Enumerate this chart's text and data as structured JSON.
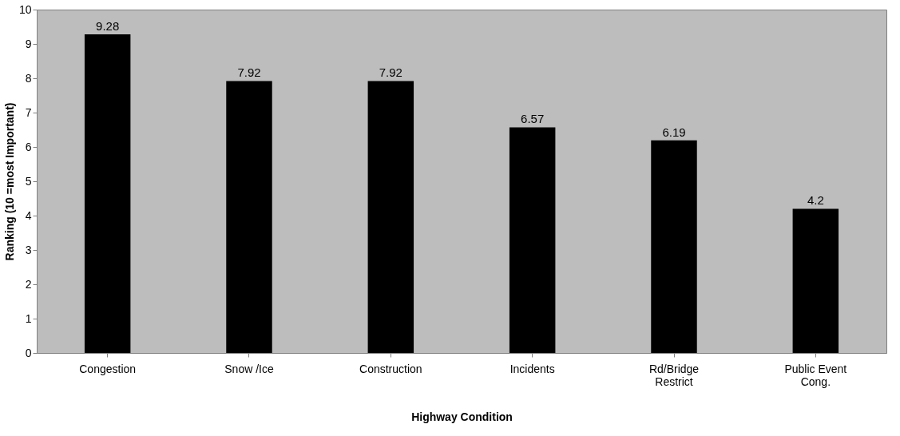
{
  "chart_data": {
    "type": "bar",
    "xlabel": "Highway Condition",
    "ylabel": "Ranking (10 =most Important)",
    "categories": [
      "Congestion",
      "Snow /Ice",
      "Construction",
      "Incidents",
      "Rd/Bridge Restrict",
      "Public Event Cong."
    ],
    "values": [
      9.28,
      7.92,
      7.92,
      6.57,
      6.19,
      4.2
    ],
    "color": "#000000",
    "ylim": [
      0,
      10
    ],
    "yticks": [
      0,
      1,
      2,
      3,
      4,
      5,
      6,
      7,
      8,
      9,
      10
    ],
    "grid": false,
    "data_labels": true
  }
}
